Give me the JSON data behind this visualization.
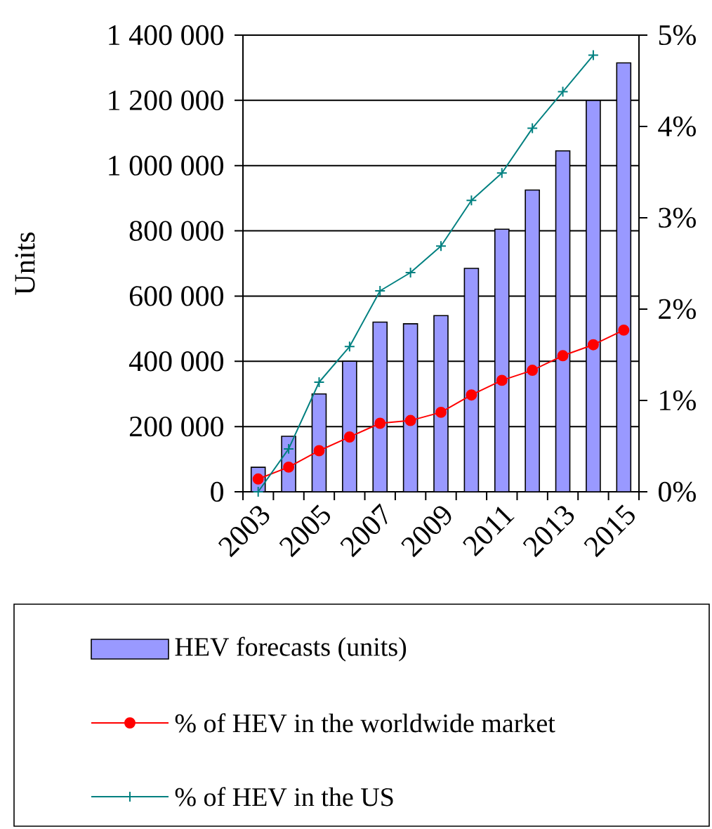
{
  "chart_data": {
    "type": "bar",
    "ylabel": "Units",
    "categories": [
      "2003",
      null,
      "2005",
      null,
      "2007",
      null,
      "2009",
      null,
      "2011",
      null,
      "2013",
      null,
      "2015"
    ],
    "series": [
      {
        "name": "HEV forecasts (units)",
        "color": "#9999ff",
        "values": [
          75000,
          170000,
          300000,
          400000,
          520000,
          515000,
          540000,
          685000,
          805000,
          925000,
          1045000,
          1200000,
          1315000
        ]
      },
      {
        "name": "% of HEV in the worldwide market",
        "type": "line",
        "axis": "y2",
        "color": "#ff0000",
        "marker": "circle",
        "values": [
          0.14,
          0.27,
          0.45,
          0.6,
          0.75,
          0.78,
          0.87,
          1.06,
          1.22,
          1.33,
          1.49,
          1.61,
          1.77
        ]
      },
      {
        "name": "% of HEV in the US",
        "type": "line",
        "axis": "y2",
        "color": "#008080",
        "marker": "cross",
        "values": [
          0,
          0.47,
          1.2,
          1.59,
          2.2,
          2.4,
          2.69,
          3.19,
          3.49,
          3.98,
          4.38,
          4.78,
          null
        ]
      }
    ],
    "ylim": [
      0,
      1400000
    ],
    "yticks": [
      0,
      {
        "value": 200000,
        "label": "200 000"
      },
      {
        "value": 400000,
        "label": "400 000"
      },
      {
        "value": 600000,
        "label": "600 000"
      },
      {
        "value": 800000,
        "label": "800 000"
      },
      {
        "value": 1000000,
        "label": "1 000 000"
      },
      {
        "value": 1200000,
        "label": "1 200 000"
      },
      {
        "value": 1400000,
        "label": "1 400 000"
      }
    ],
    "y2lim": [
      0,
      5
    ],
    "y2ticks": [
      {
        "value": 0,
        "label": "0%"
      },
      {
        "value": 1,
        "label": "1%"
      },
      {
        "value": 2,
        "label": "2%"
      },
      {
        "value": 3,
        "label": "3%"
      },
      {
        "value": 4,
        "label": "4%"
      },
      {
        "value": 5,
        "label": "5%"
      }
    ],
    "grid": "y",
    "legend": "bottom"
  }
}
